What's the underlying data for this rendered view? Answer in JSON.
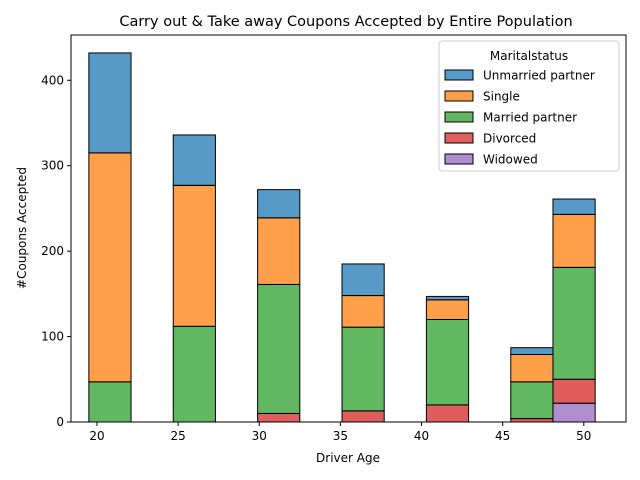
{
  "chart_data": {
    "type": "bar",
    "stacked": true,
    "title": "Carry out & Take away Coupons Accepted by Entire Population",
    "xlabel": "Driver Age",
    "ylabel": "#Coupons Accepted",
    "xlim": [
      18.4,
      52.6
    ],
    "ylim": [
      0,
      453
    ],
    "xticks": [
      20,
      25,
      30,
      35,
      40,
      45,
      50
    ],
    "yticks": [
      0,
      100,
      200,
      300,
      400
    ],
    "bins": [
      [
        19.5,
        22.1
      ],
      [
        22.1,
        24.7
      ],
      [
        24.7,
        27.3
      ],
      [
        27.3,
        29.9
      ],
      [
        29.9,
        32.5
      ],
      [
        32.5,
        35.1
      ],
      [
        35.1,
        37.7
      ],
      [
        37.7,
        40.3
      ],
      [
        40.3,
        42.9
      ],
      [
        42.9,
        45.5
      ],
      [
        45.5,
        48.1
      ],
      [
        48.1,
        50.7
      ]
    ],
    "legend": {
      "title": "Maritalstatus",
      "position": "top-right"
    },
    "series": [
      {
        "name": "Widowed",
        "color": "#9467bd",
        "values": [
          0,
          0,
          0,
          0,
          0,
          0,
          0,
          0,
          0,
          0,
          0,
          22
        ]
      },
      {
        "name": "Divorced",
        "color": "#d62728",
        "values": [
          0,
          0,
          0,
          0,
          10,
          0,
          13,
          0,
          20,
          0,
          4,
          28
        ]
      },
      {
        "name": "Married partner",
        "color": "#2ca02c",
        "values": [
          47,
          0,
          112,
          0,
          151,
          0,
          98,
          0,
          100,
          0,
          43,
          131
        ]
      },
      {
        "name": "Single",
        "color": "#ff7f0e",
        "values": [
          268,
          0,
          165,
          0,
          78,
          0,
          37,
          0,
          23,
          0,
          32,
          62
        ]
      },
      {
        "name": "Unmarried partner",
        "color": "#1f77b4",
        "values": [
          117,
          0,
          59,
          0,
          33,
          0,
          37,
          0,
          4,
          0,
          8,
          18
        ]
      }
    ],
    "legend_order": [
      "Unmarried partner",
      "Single",
      "Married partner",
      "Divorced",
      "Widowed"
    ]
  }
}
